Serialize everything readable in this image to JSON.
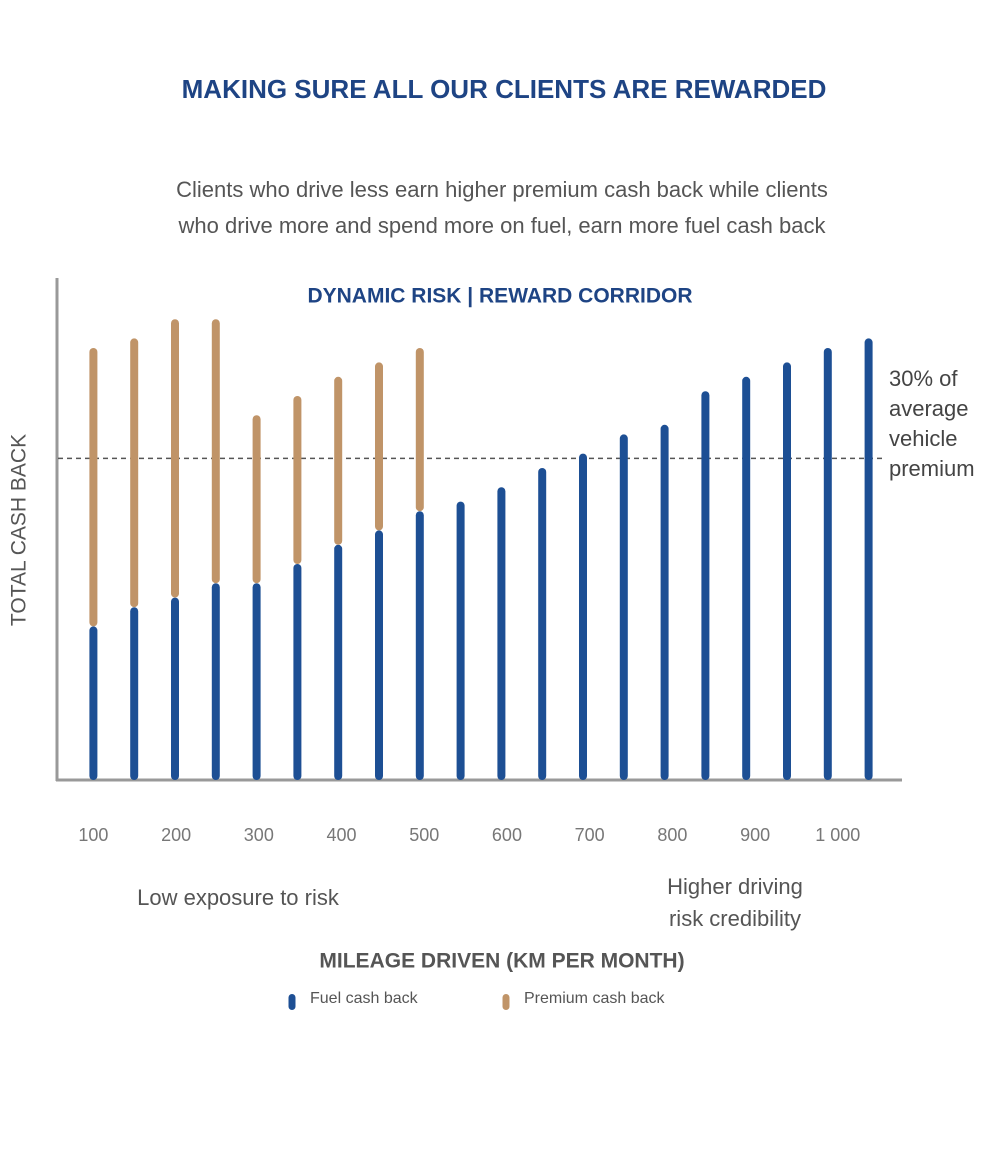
{
  "header": {
    "title": "MAKING SURE ALL OUR CLIENTS ARE REWARDED",
    "subtitle": [
      "Clients who drive less earn higher premium cash back while clients",
      "who drive more and spend more on fuel, earn more fuel cash back"
    ]
  },
  "chart_data": {
    "type": "stacked_bar",
    "title": "DYNAMIC RISK | REWARD CORRIDOR",
    "x_label": "MILEAGE DRIVEN (KM PER MONTH)",
    "y_label": "TOTAL CASH BACK",
    "categories": [
      "100",
      null,
      "200",
      null,
      "300",
      null,
      "400",
      null,
      "500",
      null,
      "600",
      null,
      "700",
      null,
      "800",
      null,
      "900",
      null,
      "1 000",
      null
    ],
    "series": [
      {
        "name": "Fuel cash back",
        "color": "#1d4f94",
        "values": [
          32,
          36,
          38,
          41,
          41,
          45,
          49,
          52,
          56,
          58,
          61,
          65,
          68,
          72,
          74,
          81,
          84,
          87,
          90,
          92
        ]
      },
      {
        "name": "Premium cash back",
        "color": "#c09468",
        "values": [
          58,
          56,
          58,
          55,
          35,
          35,
          35,
          35,
          34,
          null,
          null,
          null,
          null,
          null,
          null,
          null,
          null,
          null,
          null,
          null
        ]
      }
    ],
    "ylim": [
      0,
      100
    ],
    "reference_line": {
      "value": 67,
      "label": [
        "30% of",
        "average",
        "vehicle",
        "premium"
      ]
    },
    "annotations": [
      [
        "Low exposure to risk"
      ],
      [
        "Higher driving",
        "risk credibility"
      ]
    ]
  }
}
